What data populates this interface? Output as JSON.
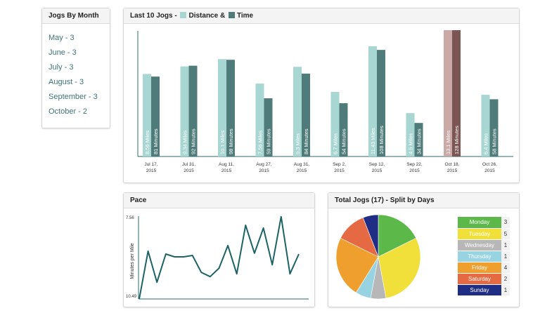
{
  "month_panel": {
    "title": "Jogs By Month",
    "items": [
      "May - 3",
      "June - 3",
      "July - 3",
      "August - 3",
      "September - 3",
      "October - 2"
    ]
  },
  "jogs_panel": {
    "title_prefix": "Last 10 Jogs -",
    "legend_distance": "Distance &",
    "legend_time": "Time"
  },
  "pace_panel": {
    "title": "Pace"
  },
  "split_panel": {
    "title": "Total Jogs (17) - Split by Days"
  },
  "colors": {
    "distance": "#a8d6d3",
    "time": "#4f7c7a",
    "distance_highlight": "#caa9a6",
    "time_highlight": "#7b5654",
    "pace_line": "#1d6366",
    "axis": "#2f6a6b"
  },
  "chart_data": [
    {
      "type": "bar",
      "title": "Last 10 Jogs - Distance & Time",
      "categories": [
        "Jul 17, 2015",
        "Jul 31, 2015",
        "Aug 11, 2015",
        "Aug 27, 2015",
        "Aug 31, 2015",
        "Sep 2, 2015",
        "Sep 12, 2015",
        "Sep 22, 2015",
        "Oct 18, 2015",
        "Oct 26, 2015"
      ],
      "category_lines": [
        [
          "Jul 17,",
          "2015"
        ],
        [
          "Jul 31,",
          "2015"
        ],
        [
          "Aug 11,",
          "2015"
        ],
        [
          "Aug 27,",
          "2015"
        ],
        [
          "Aug 31,",
          "2015"
        ],
        [
          "Sep 2,",
          "2015"
        ],
        [
          "Sep 12,",
          "2015"
        ],
        [
          "Sep 22,",
          "2015"
        ],
        [
          "Oct 18,",
          "2015"
        ],
        [
          "Oct 26,",
          "2015"
        ]
      ],
      "highlight_index": 8,
      "series": [
        {
          "name": "Distance",
          "unit": "Miles",
          "values": [
            8.56,
            9.34,
            10.1,
            7.56,
            9.3,
            6.7,
            11.43,
            4.5,
            13.1,
            6.4
          ],
          "labels": [
            "8.56 Miles",
            "9.34 Miles",
            "10.1 Miles",
            "7.56 Miles",
            "9.3 Miles",
            "6.7 Miles",
            "11.43 Miles",
            "4.5 Miles",
            "13.1 Miles",
            "6.4 Miles"
          ]
        },
        {
          "name": "Time",
          "unit": "Minutes",
          "values": [
            81,
            92,
            98,
            59,
            84,
            54,
            108,
            34,
            128,
            58
          ],
          "labels": [
            "81 Minutes",
            "92 Minutes",
            "98 Minutes",
            "59 Minutes",
            "84 Minutes",
            "54 Minutes",
            "108 Minutes",
            "34 Minutes",
            "128 Minutes",
            "58 Minutes"
          ]
        }
      ]
    },
    {
      "type": "line",
      "title": "Pace",
      "ylabel": "Minutes per Mile",
      "ylim": [
        7.56,
        10.49
      ],
      "y_tick_labels": [
        "7.56",
        "10.49"
      ],
      "invert_y": true,
      "values": [
        10.49,
        8.8,
        9.9,
        8.9,
        9.0,
        9.0,
        8.95,
        9.55,
        9.7,
        9.4,
        8.6,
        9.6,
        7.88,
        8.87,
        7.98,
        9.28,
        7.58,
        9.6,
        8.9
      ]
    },
    {
      "type": "pie",
      "title": "Total Jogs (17) - Split by Days",
      "total": 17,
      "slices": [
        {
          "label": "Monday",
          "value": 3,
          "color": "#5db84a"
        },
        {
          "label": "Tuesday",
          "value": 5,
          "color": "#f2e03a"
        },
        {
          "label": "Wednesday",
          "value": 1,
          "color": "#b7b7b7"
        },
        {
          "label": "Thursday",
          "value": 1,
          "color": "#98d3e2"
        },
        {
          "label": "Friday",
          "value": 4,
          "color": "#ef9f2e"
        },
        {
          "label": "Saturday",
          "value": 2,
          "color": "#e56a43"
        },
        {
          "label": "Sunday",
          "value": 1,
          "color": "#1f2d84"
        }
      ]
    }
  ]
}
